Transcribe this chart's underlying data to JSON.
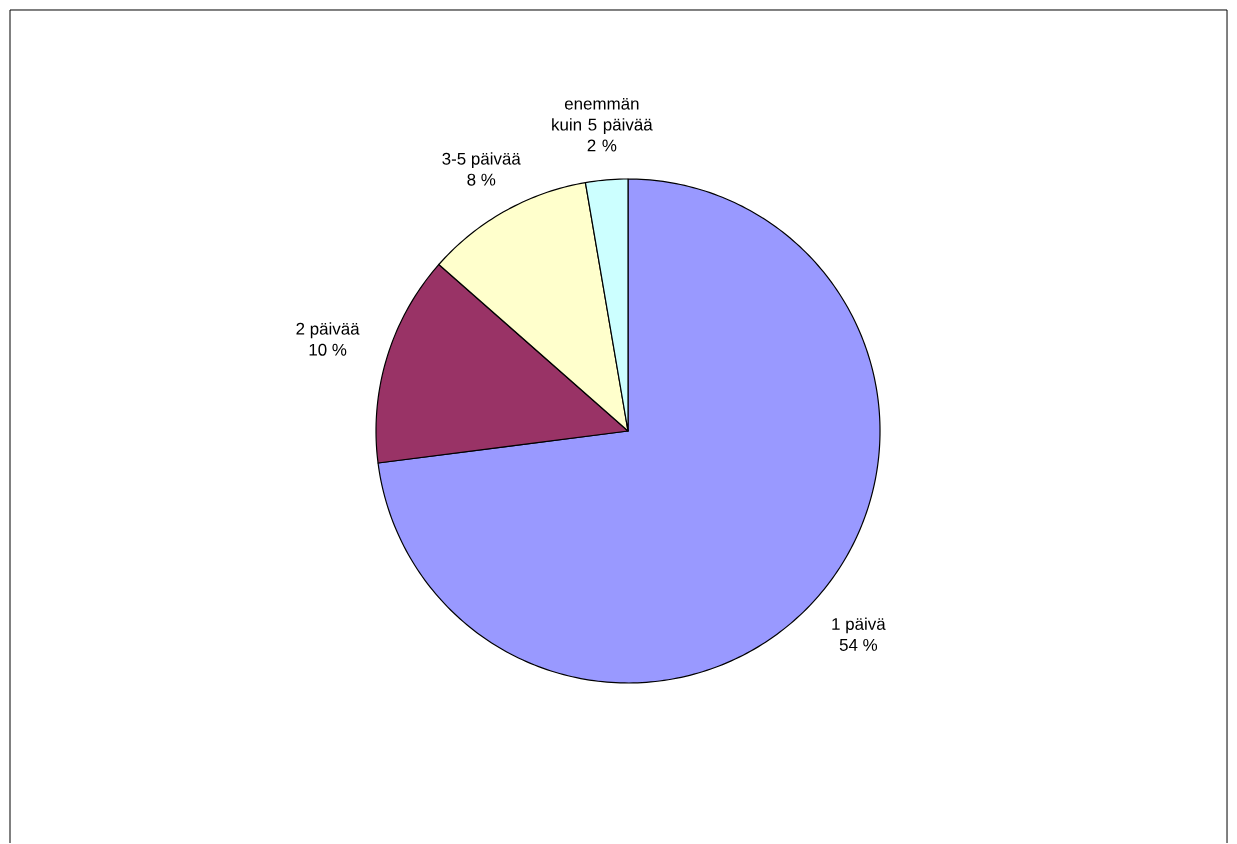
{
  "chart_data": {
    "type": "pie",
    "categories": [
      "1 päivä",
      "2 päivää",
      "3-5 päivää",
      "enemmän kuin 5 päivää"
    ],
    "values": [
      54,
      10,
      8,
      2
    ],
    "value_labels": [
      "54 %",
      "10 %",
      "8 %",
      "2 %"
    ],
    "colors": [
      "#9999ff",
      "#993366",
      "#ffffcc",
      "#ccffff"
    ]
  }
}
